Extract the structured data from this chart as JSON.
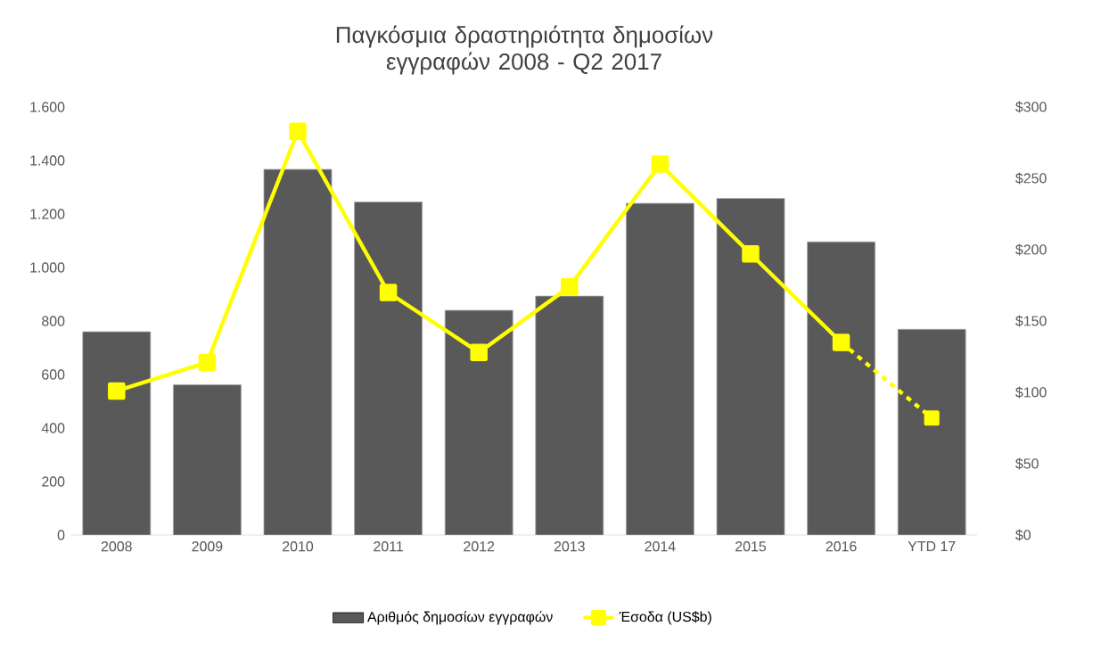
{
  "chart_data": {
    "type": "bar",
    "title": "Παγκόσμια δραστηριότητα δημοσίων εγγραφών 2008 - Q2 2017",
    "categories": [
      "2008",
      "2009",
      "2010",
      "2011",
      "2012",
      "2013",
      "2014",
      "2015",
      "2016",
      "YTD 17"
    ],
    "series": [
      {
        "name": "Αριθμός δημοσίων εγγραφών",
        "color": "#595959",
        "values": [
          760,
          562,
          1367,
          1245,
          840,
          893,
          1240,
          1258,
          1096,
          769
        ]
      },
      {
        "name": "Έσοδα (US$b)",
        "type": "line",
        "axis": "y2",
        "color": "#ffff00",
        "marker": "square",
        "line_style": "solid",
        "values": [
          101,
          121,
          283,
          170,
          128,
          174,
          260,
          197,
          135,
          null
        ]
      },
      {
        "type": "line",
        "axis": "y2",
        "color": "#ffff00",
        "marker": "square",
        "line_style": "dashed",
        "values": [
          null,
          null,
          null,
          null,
          null,
          null,
          null,
          null,
          135,
          82
        ]
      }
    ],
    "ylim": [
      0,
      1600
    ],
    "yticks": [
      0,
      200,
      400,
      600,
      800,
      {
        "value": 1000,
        "label": "1.000"
      },
      {
        "value": 1200,
        "label": "1.200"
      },
      {
        "value": 1400,
        "label": "1.400"
      },
      {
        "value": 1600,
        "label": "1.600"
      }
    ],
    "y2lim": [
      0,
      300
    ],
    "y2ticks": [
      {
        "value": 0,
        "label": "$0"
      },
      {
        "value": 50,
        "label": "$50"
      },
      {
        "value": 100,
        "label": "$100"
      },
      {
        "value": 150,
        "label": "$150"
      },
      {
        "value": 200,
        "label": "$200"
      },
      {
        "value": 250,
        "label": "$250"
      },
      {
        "value": 300,
        "label": "$300"
      }
    ],
    "legend": "bottom"
  }
}
